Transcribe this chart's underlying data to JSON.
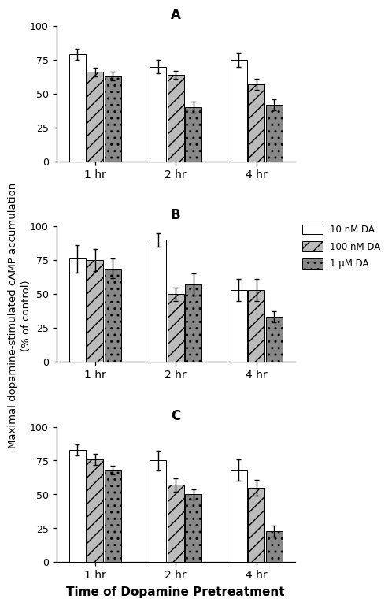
{
  "panels": [
    {
      "label": "A",
      "groups": [
        "1 hr",
        "2 hr",
        "4 hr"
      ],
      "bars": [
        {
          "label": "10 nM DA",
          "values": [
            79,
            70,
            75
          ],
          "errors": [
            4,
            5,
            5
          ]
        },
        {
          "label": "100 nM DA",
          "values": [
            66,
            64,
            57
          ],
          "errors": [
            3,
            3,
            4
          ]
        },
        {
          "label": "1 μM DA",
          "values": [
            63,
            40,
            42
          ],
          "errors": [
            3,
            4,
            4
          ]
        }
      ]
    },
    {
      "label": "B",
      "groups": [
        "1 hr",
        "2 hr",
        "4 hr"
      ],
      "bars": [
        {
          "label": "10 nM DA",
          "values": [
            76,
            90,
            53
          ],
          "errors": [
            10,
            5,
            8
          ]
        },
        {
          "label": "100 nM DA",
          "values": [
            75,
            50,
            53
          ],
          "errors": [
            8,
            5,
            8
          ]
        },
        {
          "label": "1 μM DA",
          "values": [
            69,
            57,
            33
          ],
          "errors": [
            7,
            8,
            4
          ]
        }
      ]
    },
    {
      "label": "C",
      "groups": [
        "1 hr",
        "2 hr",
        "4 hr"
      ],
      "bars": [
        {
          "label": "10 nM DA",
          "values": [
            83,
            75,
            68
          ],
          "errors": [
            4,
            7,
            8
          ]
        },
        {
          "label": "100 nM DA",
          "values": [
            76,
            57,
            55
          ],
          "errors": [
            4,
            5,
            6
          ]
        },
        {
          "label": "1 μM DA",
          "values": [
            68,
            50,
            23
          ],
          "errors": [
            3,
            4,
            4
          ]
        }
      ]
    }
  ],
  "ylim": [
    0,
    100
  ],
  "yticks": [
    0,
    25,
    50,
    75,
    100
  ],
  "ylabel": "Maximal dopamine-stimulated cAMP accumulation\n(% of control)",
  "xlabel": "Time of Dopamine Pretreatment",
  "legend_labels": [
    "10 nM DA",
    "100 nM DA",
    "1 μM DA"
  ],
  "bar_width": 0.22,
  "legend_panel": 1
}
